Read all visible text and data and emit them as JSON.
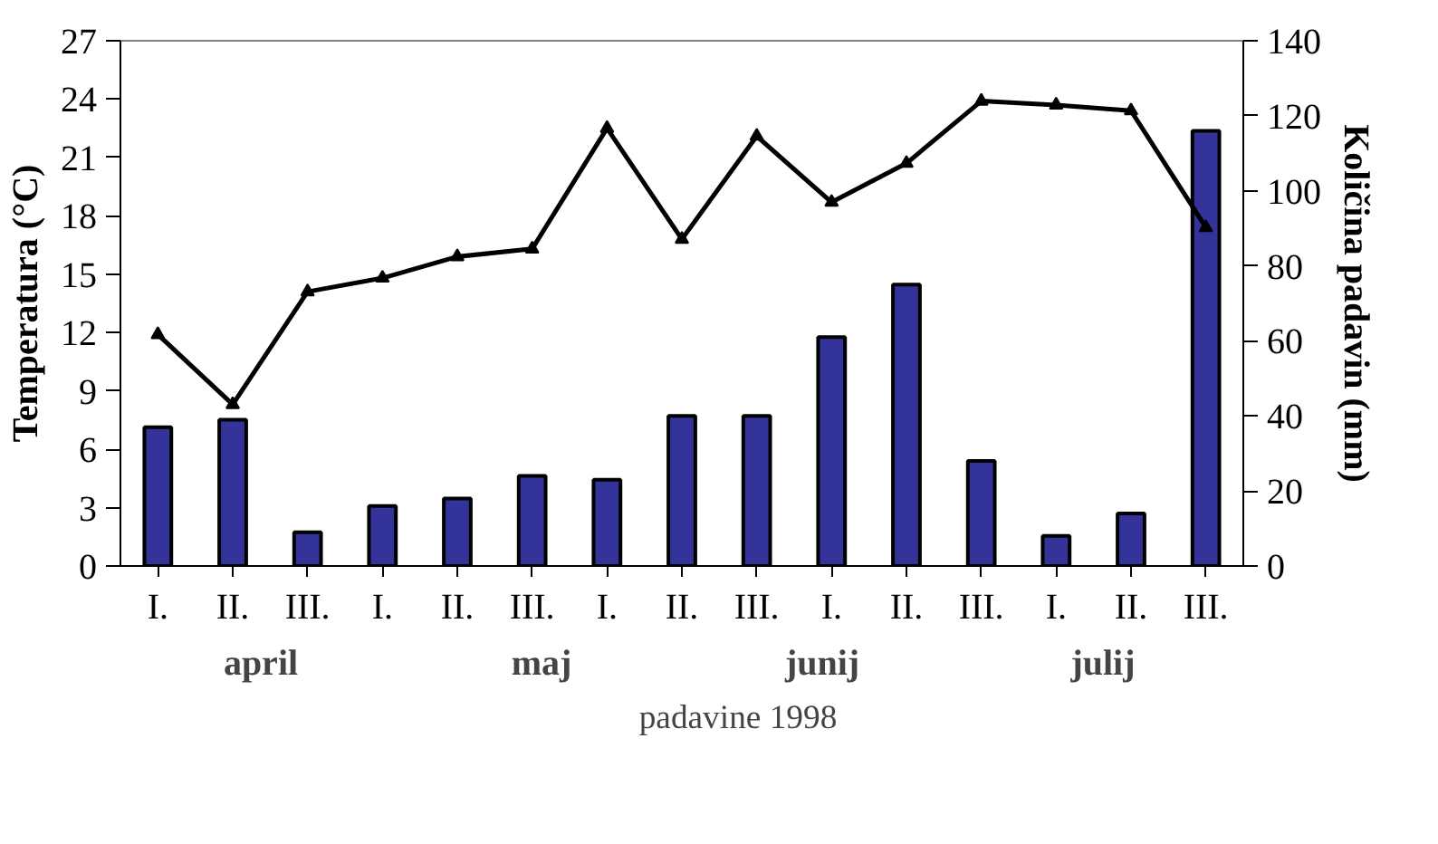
{
  "chart_data": {
    "type": "bar",
    "ylabel": "Temperatura (°C)",
    "y2label": "Količina padavin (mm)",
    "categories": [
      "I.",
      "II.",
      "III.",
      "I.",
      "II.",
      "III.",
      "I.",
      "II.",
      "III.",
      "I.",
      "II.",
      "III.",
      "I.",
      "II.",
      "III."
    ],
    "annotations": [
      "april",
      "maj",
      "junij",
      "julij"
    ],
    "series": [
      {
        "type": "bar",
        "name": "padavine 1998",
        "color": "#333399",
        "axis": "y2",
        "values": [
          37,
          39,
          9,
          16,
          18,
          24,
          23,
          40,
          40,
          61,
          75,
          28,
          8,
          14,
          116
        ]
      },
      {
        "type": "line",
        "color": "#000000",
        "values": [
          11.9,
          8.3,
          14.1,
          14.8,
          15.9,
          16.3,
          22.5,
          16.8,
          22.1,
          18.7,
          20.7,
          23.9,
          23.7,
          23.4,
          17.4
        ]
      }
    ],
    "ylim": [
      0,
      27
    ],
    "yticks": [
      0,
      3,
      6,
      9,
      12,
      15,
      18,
      21,
      24,
      27
    ],
    "y2lim": [
      0,
      140
    ],
    "y2ticks": [
      0,
      20,
      40,
      60,
      80,
      100,
      120,
      140
    ],
    "marker": "triangle",
    "legend": "bottom"
  }
}
